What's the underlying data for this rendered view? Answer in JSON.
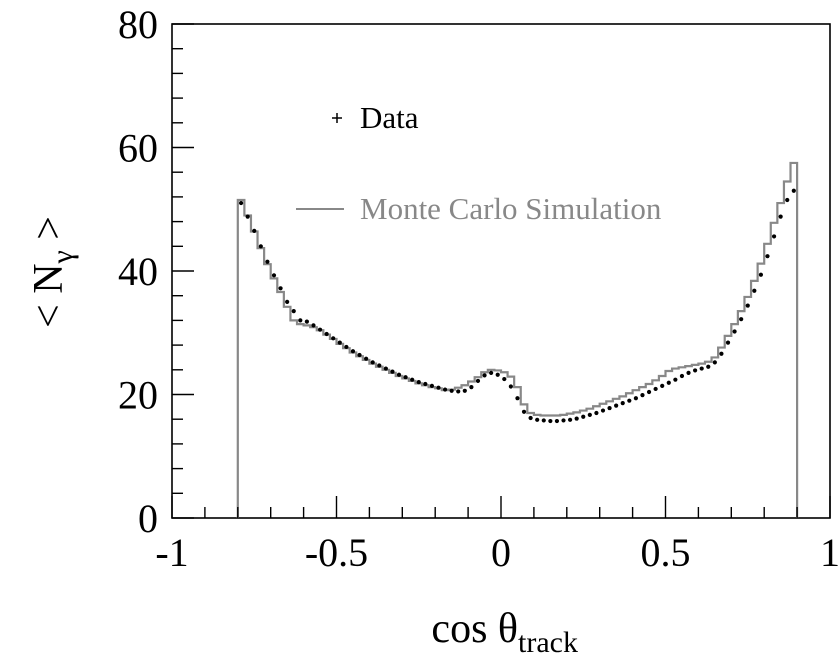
{
  "chart_data": {
    "type": "line",
    "xlabel": {
      "base": "cos θ",
      "sub": "track"
    },
    "ylabel": {
      "pre": "< N",
      "sub": "γ",
      "post": " >"
    },
    "xlim": [
      -1,
      1
    ],
    "ylim": [
      0,
      80
    ],
    "x_ticks": [
      {
        "value": -1,
        "label": "-1"
      },
      {
        "value": -0.5,
        "label": "-0.5"
      },
      {
        "value": 0,
        "label": "0"
      },
      {
        "value": 0.5,
        "label": "0.5"
      },
      {
        "value": 1,
        "label": "1"
      }
    ],
    "y_ticks": [
      {
        "value": 0,
        "label": "0"
      },
      {
        "value": 20,
        "label": "20"
      },
      {
        "value": 40,
        "label": "40"
      },
      {
        "value": 60,
        "label": "60"
      },
      {
        "value": 80,
        "label": "80"
      }
    ],
    "grid": false,
    "legend_position": "upper-center",
    "series": [
      {
        "name": "Data",
        "style": "points",
        "color": "#000000",
        "x": [
          -0.79,
          -0.77,
          -0.75,
          -0.73,
          -0.71,
          -0.69,
          -0.67,
          -0.65,
          -0.63,
          -0.61,
          -0.59,
          -0.57,
          -0.55,
          -0.53,
          -0.51,
          -0.49,
          -0.47,
          -0.45,
          -0.43,
          -0.41,
          -0.39,
          -0.37,
          -0.35,
          -0.33,
          -0.31,
          -0.29,
          -0.27,
          -0.25,
          -0.23,
          -0.21,
          -0.19,
          -0.17,
          -0.15,
          -0.13,
          -0.11,
          -0.09,
          -0.07,
          -0.05,
          -0.03,
          -0.01,
          0.01,
          0.03,
          0.05,
          0.07,
          0.09,
          0.11,
          0.13,
          0.15,
          0.17,
          0.19,
          0.21,
          0.23,
          0.25,
          0.27,
          0.29,
          0.31,
          0.33,
          0.35,
          0.37,
          0.39,
          0.41,
          0.43,
          0.45,
          0.47,
          0.49,
          0.51,
          0.53,
          0.55,
          0.57,
          0.59,
          0.61,
          0.63,
          0.65,
          0.67,
          0.69,
          0.71,
          0.73,
          0.75,
          0.77,
          0.79,
          0.81,
          0.83,
          0.85,
          0.87,
          0.89
        ],
        "y": [
          51.0,
          48.8,
          46.5,
          44.0,
          41.5,
          39.3,
          37.2,
          35.0,
          33.5,
          32.0,
          31.8,
          31.2,
          30.5,
          29.8,
          29.1,
          28.4,
          27.7,
          27.0,
          26.4,
          25.8,
          25.2,
          24.7,
          24.2,
          23.7,
          23.2,
          22.8,
          22.4,
          22.0,
          21.7,
          21.4,
          21.1,
          20.8,
          20.6,
          20.5,
          20.6,
          21.2,
          22.2,
          23.1,
          23.5,
          23.2,
          22.5,
          21.3,
          19.4,
          17.2,
          16.2,
          15.9,
          15.8,
          15.7,
          15.7,
          15.8,
          15.9,
          16.1,
          16.4,
          16.7,
          17.0,
          17.4,
          17.8,
          18.2,
          18.6,
          19.0,
          19.4,
          19.9,
          20.4,
          20.9,
          21.4,
          21.9,
          22.4,
          23.0,
          23.5,
          23.9,
          24.2,
          24.5,
          25.2,
          26.6,
          28.4,
          30.2,
          32.2,
          34.4,
          36.8,
          39.4,
          42.4,
          45.6,
          48.8,
          51.5,
          53.0
        ]
      },
      {
        "name": "Monte Carlo Simulation",
        "style": "histogram",
        "color": "#888888",
        "x": [
          -0.79,
          -0.77,
          -0.75,
          -0.73,
          -0.71,
          -0.69,
          -0.67,
          -0.65,
          -0.63,
          -0.61,
          -0.59,
          -0.57,
          -0.55,
          -0.53,
          -0.51,
          -0.49,
          -0.47,
          -0.45,
          -0.43,
          -0.41,
          -0.39,
          -0.37,
          -0.35,
          -0.33,
          -0.31,
          -0.29,
          -0.27,
          -0.25,
          -0.23,
          -0.21,
          -0.19,
          -0.17,
          -0.15,
          -0.13,
          -0.11,
          -0.09,
          -0.07,
          -0.05,
          -0.03,
          -0.01,
          0.01,
          0.03,
          0.05,
          0.07,
          0.09,
          0.11,
          0.13,
          0.15,
          0.17,
          0.19,
          0.21,
          0.23,
          0.25,
          0.27,
          0.29,
          0.31,
          0.33,
          0.35,
          0.37,
          0.39,
          0.41,
          0.43,
          0.45,
          0.47,
          0.49,
          0.51,
          0.53,
          0.55,
          0.57,
          0.59,
          0.61,
          0.63,
          0.65,
          0.67,
          0.69,
          0.71,
          0.73,
          0.75,
          0.77,
          0.79,
          0.81,
          0.83,
          0.85,
          0.87,
          0.89
        ],
        "y": [
          51.5,
          49.0,
          46.4,
          43.7,
          41.1,
          38.8,
          36.6,
          34.2,
          32.0,
          31.4,
          31.2,
          30.9,
          30.4,
          29.7,
          29.0,
          28.2,
          27.5,
          26.8,
          26.2,
          25.6,
          25.0,
          24.5,
          24.0,
          23.5,
          23.0,
          22.6,
          22.2,
          21.8,
          21.5,
          21.2,
          21.0,
          20.7,
          20.8,
          21.1,
          21.5,
          22.1,
          22.8,
          23.6,
          24.0,
          23.9,
          23.6,
          22.9,
          21.2,
          18.4,
          17.0,
          16.7,
          16.6,
          16.6,
          16.6,
          16.7,
          16.9,
          17.1,
          17.4,
          17.7,
          18.1,
          18.5,
          18.9,
          19.3,
          19.7,
          20.2,
          20.7,
          21.2,
          21.7,
          22.3,
          23.0,
          23.8,
          24.2,
          24.4,
          24.6,
          24.8,
          25.0,
          25.3,
          26.0,
          27.6,
          29.5,
          31.4,
          33.5,
          35.8,
          38.4,
          41.2,
          44.4,
          47.8,
          51.0,
          54.5,
          57.5
        ]
      }
    ]
  }
}
